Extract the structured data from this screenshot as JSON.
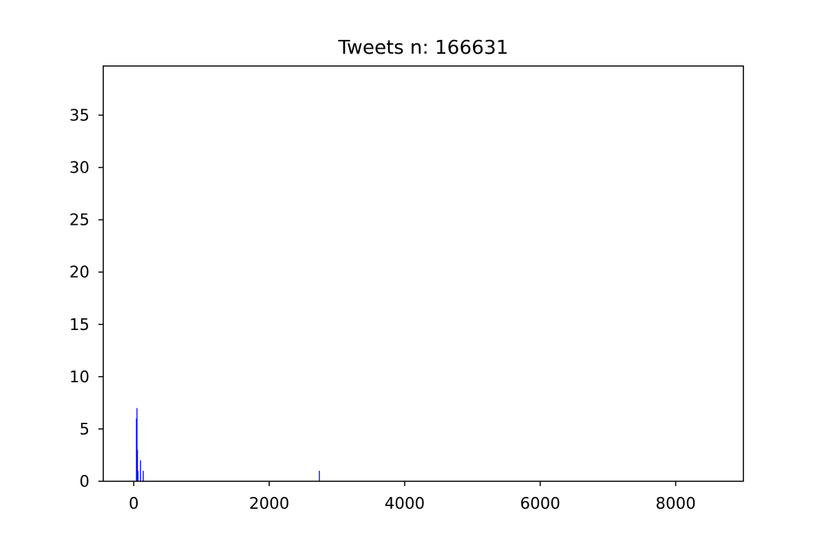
{
  "chart_data": {
    "type": "bar",
    "title": "Tweets n: 166631",
    "xlabel": "",
    "ylabel": "",
    "xlim": [
      -450,
      9000
    ],
    "ylim": [
      0,
      39.7
    ],
    "xticks": [
      0,
      2000,
      4000,
      6000,
      8000
    ],
    "yticks": [
      0,
      5,
      10,
      15,
      20,
      25,
      30,
      35
    ],
    "grid": false,
    "legend": false,
    "bar_color": "#0000ff",
    "bar_width": 8,
    "series": [
      {
        "x": [
          40,
          48,
          55,
          63,
          100,
          140,
          2740
        ],
        "values": [
          6,
          7,
          3,
          1,
          2,
          1,
          1
        ]
      }
    ]
  }
}
